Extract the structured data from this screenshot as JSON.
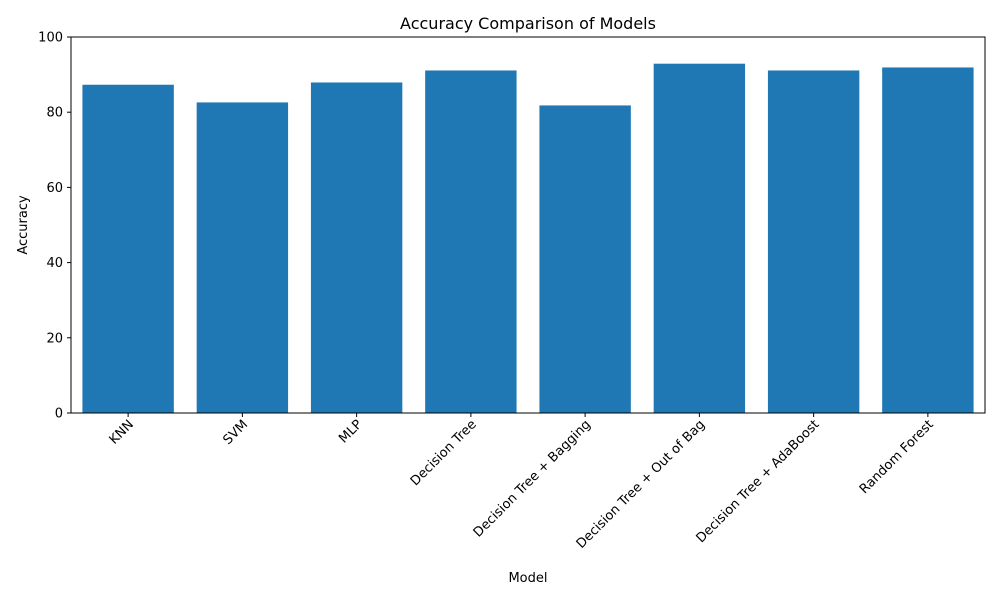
{
  "chart_data": {
    "type": "bar",
    "title": "Accuracy Comparison of Models",
    "xlabel": "Model",
    "ylabel": "Accuracy",
    "categories": [
      "KNN",
      "SVM",
      "MLP",
      "Decision Tree",
      "Decision Tree + Bagging",
      "Decision Tree + Out of Bag",
      "Decision Tree + AdaBoost",
      "Random Forest"
    ],
    "values": [
      87.3,
      82.6,
      87.9,
      91.1,
      81.8,
      92.9,
      91.1,
      91.9
    ],
    "ylim": [
      0,
      100
    ],
    "yticks": [
      "0",
      "20",
      "40",
      "60",
      "80",
      "100"
    ],
    "grid": false,
    "bar_color": "#1f77b4",
    "x_tick_rotation_deg": 45
  }
}
